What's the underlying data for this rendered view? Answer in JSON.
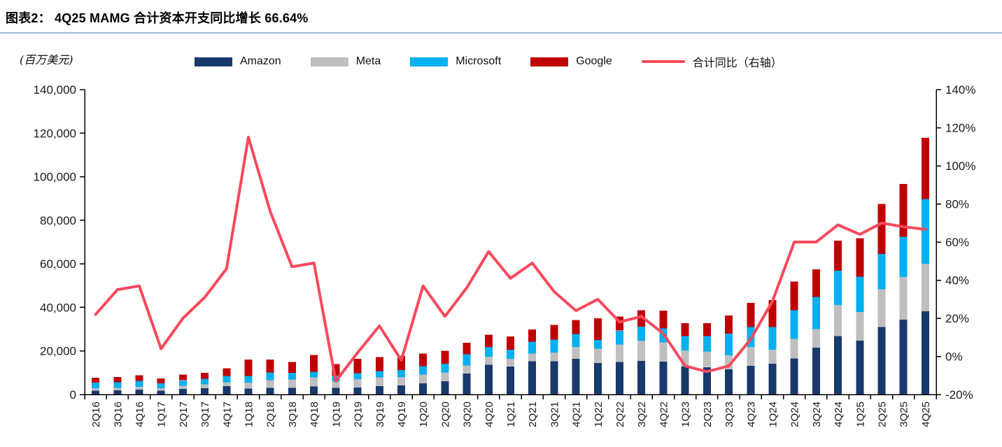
{
  "header": {
    "title": "图表2：  4Q25 MAMG 合计资本开支同比增长 66.64%"
  },
  "unit_label": "(百万美元)",
  "legend": {
    "items": [
      {
        "label": "Amazon",
        "color": "#18396B",
        "type": "bar"
      },
      {
        "label": "Meta",
        "color": "#BFBFBF",
        "type": "bar"
      },
      {
        "label": "Microsoft",
        "color": "#00B0F0",
        "type": "bar"
      },
      {
        "label": "Google",
        "color": "#C00000",
        "type": "bar"
      },
      {
        "label": "合计同比（右轴）",
        "color": "#F9495C",
        "type": "line"
      }
    ]
  },
  "axes": {
    "left_ticks": [
      "0",
      "20,000",
      "40,000",
      "60,000",
      "80,000",
      "100,000",
      "120,000",
      "140,000"
    ],
    "right_ticks": [
      "-20%",
      "0%",
      "20%",
      "40%",
      "60%",
      "80%",
      "100%",
      "120%",
      "140%"
    ]
  },
  "chart_data": {
    "type": "combo",
    "subtype": "stacked-bar+line",
    "title": "4Q25 MAMG 合计资本开支同比增长 66.64%",
    "unit": "百万美元",
    "legend_position": "top",
    "grid": false,
    "categories": [
      "2Q16",
      "3Q16",
      "4Q16",
      "1Q17",
      "2Q17",
      "3Q17",
      "4Q17",
      "1Q18",
      "2Q18",
      "3Q18",
      "4Q18",
      "1Q19",
      "2Q19",
      "3Q19",
      "4Q19",
      "1Q20",
      "2Q20",
      "3Q20",
      "4Q20",
      "1Q21",
      "2Q21",
      "3Q21",
      "4Q21",
      "1Q22",
      "2Q22",
      "3Q22",
      "4Q22",
      "1Q23",
      "2Q23",
      "3Q23",
      "4Q23",
      "1Q24",
      "2Q24",
      "3Q24",
      "4Q24",
      "1Q25",
      "2Q25",
      "3Q25",
      "4Q25"
    ],
    "left_axis": {
      "min": 0,
      "max": 140000,
      "step": 20000,
      "label": "百万美元"
    },
    "right_axis": {
      "min": -20,
      "max": 140,
      "step": 20,
      "unit": "%"
    },
    "series": [
      {
        "name": "Amazon",
        "type": "bar",
        "stack": true,
        "color": "#18396B",
        "values": [
          1800,
          1900,
          2300,
          1800,
          2600,
          2900,
          3800,
          2800,
          3100,
          3000,
          3700,
          3000,
          3200,
          3900,
          4100,
          5100,
          6100,
          9600,
          13700,
          12900,
          15200,
          15300,
          16400,
          14500,
          14900,
          15500,
          15100,
          12900,
          12600,
          11500,
          13200,
          14100,
          16600,
          21600,
          26800,
          24800,
          31000,
          34400,
          38200
        ]
      },
      {
        "name": "Meta",
        "type": "bar",
        "stack": true,
        "color": "#BFBFBF",
        "values": [
          1100,
          1200,
          1200,
          1100,
          1400,
          1800,
          1800,
          2600,
          3500,
          3900,
          4100,
          2900,
          3800,
          3900,
          3900,
          4000,
          4000,
          3800,
          3600,
          3500,
          3600,
          4000,
          5400,
          6600,
          8000,
          9200,
          8800,
          7400,
          7200,
          6500,
          8600,
          6500,
          9000,
          8500,
          14300,
          13100,
          17300,
          19500,
          21900
        ]
      },
      {
        "name": "Microsoft",
        "type": "bar",
        "stack": true,
        "color": "#00B0F0",
        "values": [
          2600,
          2500,
          2700,
          2200,
          2500,
          2600,
          2900,
          3100,
          3600,
          3100,
          2700,
          2800,
          2800,
          3000,
          3300,
          3900,
          4100,
          5000,
          4500,
          4100,
          5400,
          5900,
          5900,
          4000,
          6400,
          6500,
          6500,
          6600,
          7100,
          10000,
          9200,
          10400,
          13100,
          14700,
          15800,
          16200,
          16300,
          18500,
          29700
        ]
      },
      {
        "name": "Google",
        "type": "bar",
        "stack": true,
        "color": "#C00000",
        "values": [
          2200,
          2400,
          2600,
          2300,
          2700,
          2700,
          3600,
          7600,
          5800,
          4900,
          7600,
          5300,
          6600,
          6400,
          6500,
          5800,
          5900,
          5400,
          5700,
          6100,
          5700,
          6800,
          6500,
          9900,
          6500,
          7500,
          8100,
          5900,
          5800,
          8300,
          11000,
          12300,
          13100,
          12700,
          13800,
          17600,
          22900,
          24300,
          28100
        ]
      },
      {
        "name": "合计同比（右轴）",
        "type": "line",
        "axis": "right",
        "color": "#F9495C",
        "values": [
          22,
          35,
          37,
          4,
          20,
          31,
          46,
          115,
          76,
          47,
          49,
          -13,
          2,
          16,
          -2,
          37,
          21,
          36,
          55,
          41,
          49,
          34,
          24,
          30,
          18,
          21,
          12,
          -5,
          -8,
          -5,
          9,
          29,
          60,
          60,
          69,
          64,
          70,
          68,
          66.64
        ]
      }
    ]
  },
  "style_colors": {
    "title_rule": "#9fb9d8",
    "axis": "#000000",
    "tick_text": "#1a1a1a"
  }
}
